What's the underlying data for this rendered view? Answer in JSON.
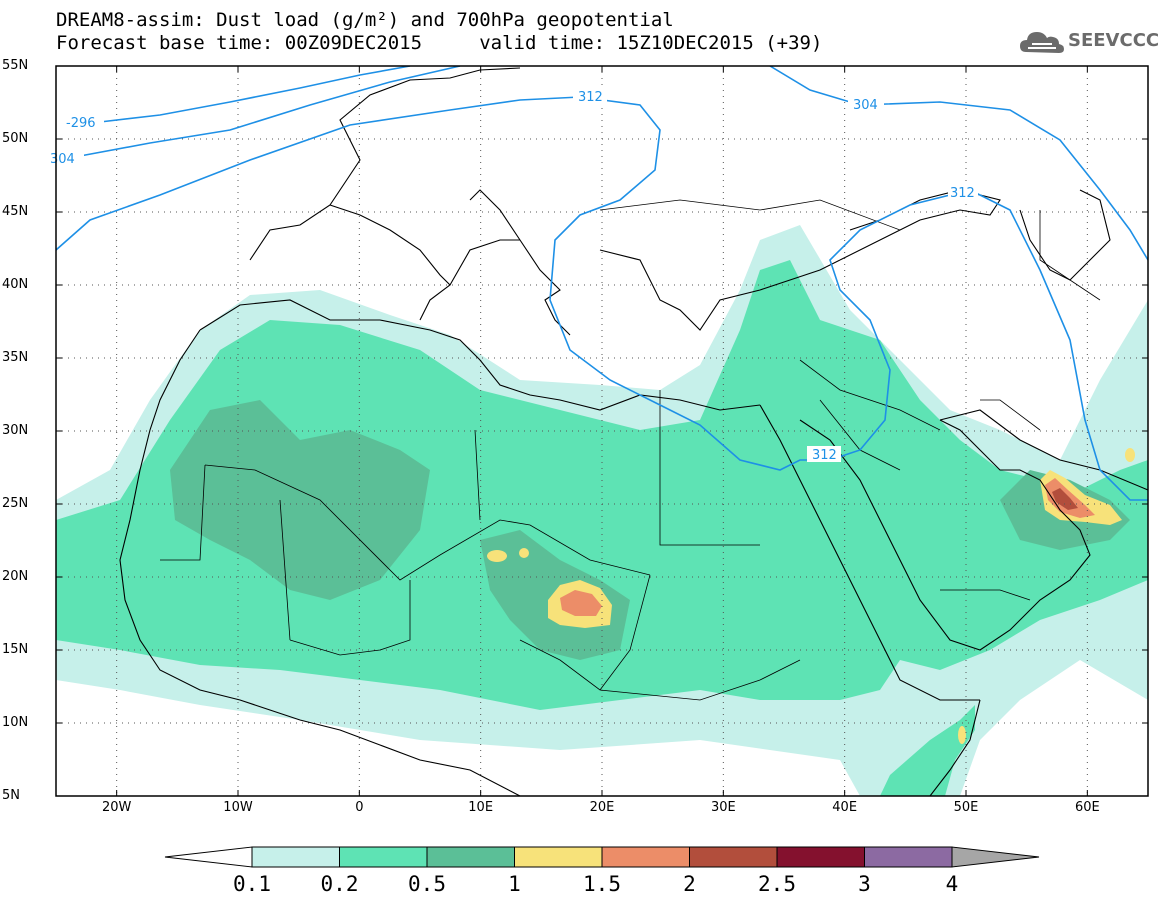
{
  "title_line1": "DREAM8-assim: Dust load (g/m²) and 700hPa geopotential",
  "title_line2": "Forecast base time: 00Z09DEC2015     valid time: 15Z10DEC2015 (+39)",
  "logo_text": "SEEVCCC",
  "lat_labels": [
    "55N",
    "50N",
    "45N",
    "40N",
    "35N",
    "30N",
    "25N",
    "20N",
    "15N",
    "10N",
    "5N"
  ],
  "lon_labels": [
    "20W",
    "10W",
    "0",
    "10E",
    "20E",
    "30E",
    "40E",
    "50E",
    "60E"
  ],
  "contour_labels": [
    "-296",
    "304",
    "312",
    "304",
    "312",
    "312"
  ],
  "colorbar": {
    "labels": [
      "0.1",
      "0.2",
      "0.5",
      "1",
      "1.5",
      "2",
      "2.5",
      "3",
      "4"
    ],
    "colors": [
      "#c6f0ea",
      "#5ee3b4",
      "#5bbf97",
      "#f7e27a",
      "#ec8d68",
      "#b24e3c",
      "#84112e",
      "#8c6aa2"
    ],
    "under_color": "#ffffff",
    "over_color": "#a6a6a6"
  },
  "colors": {
    "coast": "#000000",
    "contour": "#1e90e6",
    "frame": "#000000"
  }
}
